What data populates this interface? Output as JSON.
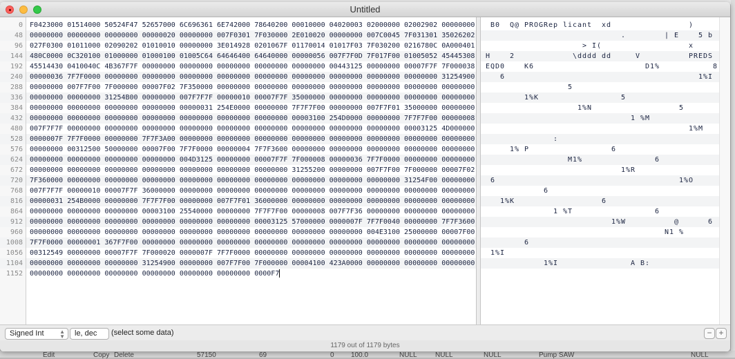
{
  "window": {
    "title": "Untitled"
  },
  "hex": {
    "rows": [
      {
        "offset": "0",
        "groups": [
          "F0423000",
          "01514000",
          "50524F47",
          "52657000",
          "6C696361",
          "6E742000",
          "78640200",
          "00010000",
          "04020003",
          "02000000",
          "02002902",
          "00000000"
        ]
      },
      {
        "offset": "48",
        "groups": [
          "00000000",
          "00000000",
          "00000000",
          "00000020",
          "00000000",
          "007F0301",
          "7F030000",
          "2E010020",
          "00000000",
          "007C0045",
          "7F031301",
          "35026202"
        ]
      },
      {
        "offset": "96",
        "groups": [
          "027F0300",
          "01011000",
          "02090202",
          "01010010",
          "00000000",
          "3E014928",
          "0201067F",
          "01170014",
          "01017F03",
          "7F030200",
          "0216780C",
          "0A000401"
        ]
      },
      {
        "offset": "144",
        "groups": [
          "480C0000",
          "0C320100",
          "01000000",
          "01000100",
          "01005C64",
          "64646400",
          "64640000",
          "00000056",
          "007F7F0D",
          "7F017F00",
          "01005052",
          "45445308"
        ]
      },
      {
        "offset": "192",
        "groups": [
          "45514430",
          "0410040C",
          "4B367F7F",
          "00000000",
          "00000000",
          "00000000",
          "00000000",
          "00000000",
          "00443125",
          "00000000",
          "00007F7F",
          "7F000038"
        ]
      },
      {
        "offset": "240",
        "groups": [
          "00000036",
          "7F7F0000",
          "00000000",
          "00000000",
          "00000000",
          "00000000",
          "00000000",
          "00000000",
          "00000000",
          "00000000",
          "00000000",
          "31254900"
        ]
      },
      {
        "offset": "288",
        "groups": [
          "00000000",
          "007F7F00",
          "7F000000",
          "00007F02",
          "7F350000",
          "00000000",
          "00000000",
          "00000000",
          "00000000",
          "00000000",
          "00000000",
          "00000000"
        ]
      },
      {
        "offset": "336",
        "groups": [
          "00000000",
          "00000000",
          "31254B00",
          "00000000",
          "007F7F7F",
          "00000010",
          "00007F7F",
          "35000000",
          "00000000",
          "00000000",
          "00000000",
          "00000000"
        ]
      },
      {
        "offset": "384",
        "groups": [
          "00000000",
          "00000000",
          "00000000",
          "00000000",
          "00000031",
          "254E0000",
          "00000000",
          "7F7F7F00",
          "00000000",
          "007F7F01",
          "35000000",
          "00000000"
        ]
      },
      {
        "offset": "432",
        "groups": [
          "00000000",
          "00000000",
          "00000000",
          "00000000",
          "00000000",
          "00000000",
          "00000000",
          "00003100",
          "254D0000",
          "00000000",
          "7F7F7F00",
          "00000008"
        ]
      },
      {
        "offset": "480",
        "groups": [
          "007F7F7F",
          "00000000",
          "00000000",
          "00000000",
          "00000000",
          "00000000",
          "00000000",
          "00000000",
          "00000000",
          "00000000",
          "00003125",
          "4D000000"
        ]
      },
      {
        "offset": "528",
        "groups": [
          "0000007F",
          "7F7F0000",
          "00000000",
          "7F7F3A00",
          "00000000",
          "00000000",
          "00000000",
          "00000000",
          "00000000",
          "00000000",
          "00000000",
          "00000000"
        ]
      },
      {
        "offset": "576",
        "groups": [
          "00000000",
          "00312500",
          "50000000",
          "00007F00",
          "7F7F0000",
          "00000004",
          "7F7F3600",
          "00000000",
          "00000000",
          "00000000",
          "00000000",
          "00000000"
        ]
      },
      {
        "offset": "624",
        "groups": [
          "00000000",
          "00000000",
          "00000000",
          "00000000",
          "004D3125",
          "00000000",
          "00007F7F",
          "7F000008",
          "00000036",
          "7F7F0000",
          "00000000",
          "00000000"
        ]
      },
      {
        "offset": "672",
        "groups": [
          "00000000",
          "00000000",
          "00000000",
          "00000000",
          "00000000",
          "00000000",
          "00000000",
          "31255200",
          "00000000",
          "007F7F00",
          "7F000000",
          "00007F02"
        ]
      },
      {
        "offset": "720",
        "groups": [
          "7F360000",
          "00000000",
          "00000000",
          "00000000",
          "00000000",
          "00000000",
          "00000000",
          "00000000",
          "00000000",
          "00000000",
          "31254F00",
          "00000000"
        ]
      },
      {
        "offset": "768",
        "groups": [
          "007F7F7F",
          "00000010",
          "00007F7F",
          "36000000",
          "00000000",
          "00000000",
          "00000000",
          "00000000",
          "00000000",
          "00000000",
          "00000000",
          "00000000"
        ]
      },
      {
        "offset": "816",
        "groups": [
          "00000031",
          "254B0000",
          "00000000",
          "7F7F7F00",
          "00000000",
          "007F7F01",
          "36000000",
          "00000000",
          "00000000",
          "00000000",
          "00000000",
          "00000000"
        ]
      },
      {
        "offset": "864",
        "groups": [
          "00000000",
          "00000000",
          "00000000",
          "00003100",
          "25540000",
          "00000000",
          "7F7F7F00",
          "00000008",
          "007F7F36",
          "00000000",
          "00000000",
          "00000000"
        ]
      },
      {
        "offset": "912",
        "groups": [
          "00000000",
          "00000000",
          "00000000",
          "00000000",
          "00000000",
          "00000000",
          "00003125",
          "57000000",
          "0000007F",
          "7F7F0040",
          "00000000",
          "7F7F3600"
        ]
      },
      {
        "offset": "960",
        "groups": [
          "00000000",
          "00000000",
          "00000000",
          "00000000",
          "00000000",
          "00000000",
          "00000000",
          "00000000",
          "00000000",
          "004E3100",
          "25000000",
          "00007F00"
        ]
      },
      {
        "offset": "1008",
        "groups": [
          "7F7F0000",
          "00000001",
          "367F7F00",
          "00000000",
          "00000000",
          "00000000",
          "00000000",
          "00000000",
          "00000000",
          "00000000",
          "00000000",
          "00000000"
        ]
      },
      {
        "offset": "1056",
        "groups": [
          "00312549",
          "00000000",
          "00007F7F",
          "7F000020",
          "0000007F",
          "7F7F0000",
          "00000000",
          "00000000",
          "00000000",
          "00000000",
          "00000000",
          "00000000"
        ]
      },
      {
        "offset": "1104",
        "groups": [
          "00000000",
          "00000000",
          "00000000",
          "31254900",
          "00000000",
          "007F7F00",
          "7F000000",
          "00004100",
          "423A0000",
          "00000000",
          "00000000",
          "00000000"
        ]
      },
      {
        "offset": "1152",
        "groups": [
          "00000000",
          "00000000",
          "00000000",
          "00000000",
          "00000000",
          "00000000",
          "0000F7"
        ]
      }
    ]
  },
  "inspector": {
    "type_label": "Signed Int",
    "endian_label": "le, dec",
    "hint": "(select some data)",
    "minus_label": "−",
    "plus_label": "+"
  },
  "status": {
    "text": "1179 out of 1179 bytes"
  },
  "background_app": {
    "bottom_labels": [
      "Edit",
      "Copy",
      "Delete",
      "57150",
      "69",
      "0",
      "100.0",
      "NULL",
      "NULL",
      "NULL",
      "Pump SAW",
      "NULL"
    ]
  },
  "colors": {
    "close": "#fc605c",
    "minimize": "#fdbc40",
    "zoom": "#34c84a",
    "text": "#1a2340"
  }
}
